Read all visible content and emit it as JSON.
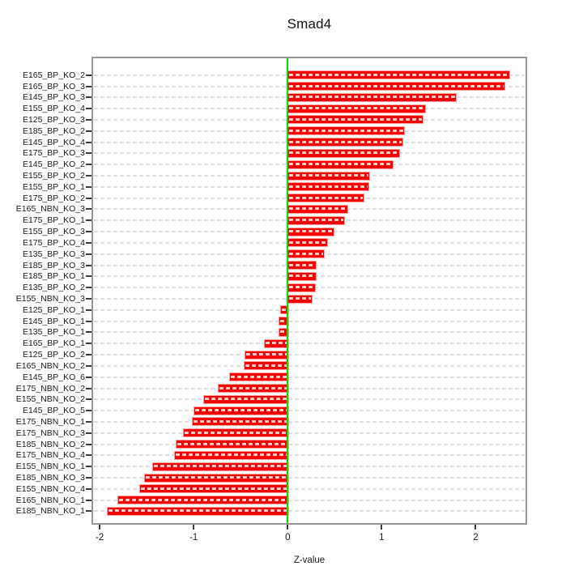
{
  "page": {
    "background": "#ffffff"
  },
  "chart_data": {
    "type": "bar",
    "orientation": "horizontal",
    "title": "Smad4",
    "xlabel": "Z-value",
    "ylabel": "",
    "xlim": [
      -2.07,
      2.53
    ],
    "xticks": [
      -2,
      -1,
      0,
      1,
      2
    ],
    "grid": true,
    "legend": "none",
    "zero_line_x": 0,
    "categories": [
      "E165_BP_KO_2",
      "E165_BP_KO_3",
      "E145_BP_KO_3",
      "E155_BP_KO_4",
      "E125_BP_KO_3",
      "E185_BP_KO_2",
      "E145_BP_KO_4",
      "E175_BP_KO_3",
      "E145_BP_KO_2",
      "E155_BP_KO_2",
      "E155_BP_KO_1",
      "E175_BP_KO_2",
      "E165_NBN_KO_3",
      "E175_BP_KO_1",
      "E155_BP_KO_3",
      "E175_BP_KO_4",
      "E135_BP_KO_3",
      "E185_BP_KO_3",
      "E185_BP_KO_1",
      "E135_BP_KO_2",
      "E155_NBN_KO_3",
      "E125_BP_KO_1",
      "E145_BP_KO_1",
      "E135_BP_KO_1",
      "E165_BP_KO_1",
      "E125_BP_KO_2",
      "E165_NBN_KO_2",
      "E145_BP_KO_6",
      "E175_NBN_KO_2",
      "E155_NBN_KO_2",
      "E145_BP_KO_5",
      "E175_NBN_KO_1",
      "E175_NBN_KO_3",
      "E185_NBN_KO_2",
      "E175_NBN_KO_4",
      "E155_NBN_KO_1",
      "E185_NBN_KO_3",
      "E155_NBN_KO_4",
      "E165_NBN_KO_1",
      "E185_NBN_KO_1"
    ],
    "values": [
      2.35,
      2.3,
      1.78,
      1.45,
      1.43,
      1.23,
      1.21,
      1.18,
      1.11,
      0.86,
      0.85,
      0.8,
      0.63,
      0.59,
      0.48,
      0.41,
      0.38,
      0.29,
      0.29,
      0.28,
      0.25,
      -0.08,
      -0.1,
      -0.1,
      -0.25,
      -0.46,
      -0.47,
      -0.62,
      -0.74,
      -0.9,
      -1.0,
      -1.02,
      -1.11,
      -1.19,
      -1.21,
      -1.44,
      -1.53,
      -1.58,
      -1.81,
      -1.92
    ],
    "colors": {
      "bar_fill": "#f80000",
      "bar_border": "#ff9e9e",
      "bar_inner_dash": "rgba(255,255,255,0.8)",
      "zero_line": "#00DD00",
      "gridline": "#dedede",
      "plot_border": "#979797",
      "background": "#ffffff",
      "text": "#1a1a1a"
    }
  }
}
